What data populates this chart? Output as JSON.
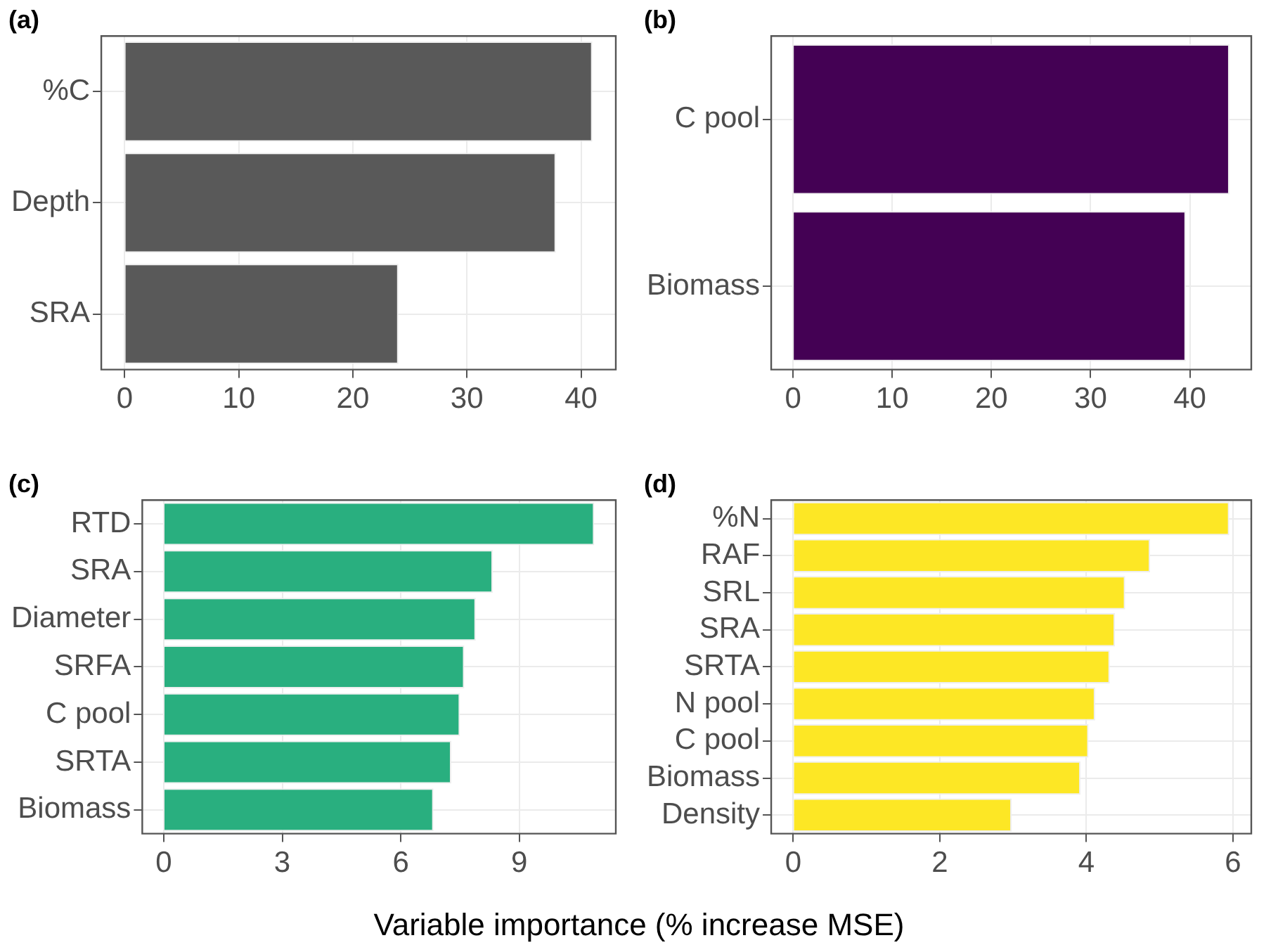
{
  "chart_data": [
    {
      "type": "bar",
      "orientation": "horizontal",
      "title": "(a)",
      "categories": [
        "%C",
        "Depth",
        "SRA"
      ],
      "values": [
        41.0,
        37.8,
        24.0
      ],
      "color": "#595959",
      "xlim": [
        -2.05,
        43.05
      ],
      "xticks": [
        0,
        10,
        20,
        30,
        40
      ],
      "grid": true
    },
    {
      "type": "bar",
      "orientation": "horizontal",
      "title": "(b)",
      "categories": [
        "C pool",
        "Biomass"
      ],
      "values": [
        44.0,
        39.6
      ],
      "color": "#440154",
      "xlim": [
        -2.2,
        46.2
      ],
      "xticks": [
        0,
        10,
        20,
        30,
        40
      ],
      "grid": true
    },
    {
      "type": "bar",
      "orientation": "horizontal",
      "title": "(c)",
      "categories": [
        "RTD",
        "SRA",
        "Diameter",
        "SRFA",
        "C pool",
        "SRTA",
        "Biomass"
      ],
      "values": [
        10.9,
        8.33,
        7.9,
        7.61,
        7.5,
        7.28,
        6.83
      ],
      "color": "#29af7f",
      "xlim": [
        -0.545,
        11.445
      ],
      "xticks": [
        0,
        3,
        6,
        9
      ],
      "grid": true
    },
    {
      "type": "bar",
      "orientation": "horizontal",
      "title": "(d)",
      "xlabel": "Variable importance (% increase MSE)",
      "categories": [
        "%N",
        "RAF",
        "SRL",
        "SRA",
        "SRTA",
        "N pool",
        "C pool",
        "Biomass",
        "Density"
      ],
      "values": [
        5.95,
        4.87,
        4.53,
        4.39,
        4.32,
        4.12,
        4.03,
        3.92,
        2.98
      ],
      "color": "#fde725",
      "xlim": [
        -0.3,
        6.25
      ],
      "xticks": [
        0,
        2,
        4,
        6
      ],
      "grid": true
    }
  ]
}
